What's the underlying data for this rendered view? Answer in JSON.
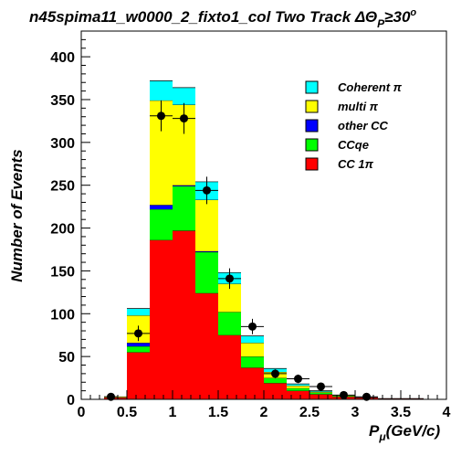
{
  "chart_data": {
    "type": "bar",
    "stacked": true,
    "title": "n45spima11_w0000_2_fixto1_col Two Track ΔΘ",
    "title_subscript": "P",
    "title_suffix": "≥30",
    "title_superscript": "o",
    "xlabel_main": "P",
    "xlabel_sub": "μ",
    "xlabel_unit": "(GeV/c)",
    "ylabel": "Number of Events",
    "xlim": [
      0,
      4
    ],
    "ylim": [
      0,
      430
    ],
    "x_ticks": [
      "0",
      "0.5",
      "1",
      "1.5",
      "2",
      "2.5",
      "3",
      "3.5",
      "4"
    ],
    "y_ticks": [
      "0",
      "50",
      "100",
      "150",
      "200",
      "250",
      "300",
      "350",
      "400"
    ],
    "bin_edges": [
      0.25,
      0.5,
      0.75,
      1.0,
      1.25,
      1.5,
      1.75,
      2.0,
      2.25,
      2.5,
      2.75,
      3.0,
      3.25,
      3.5,
      3.75,
      4.0
    ],
    "series": [
      {
        "name": "CC 1π",
        "color": "#ff0000",
        "values": [
          2,
          55,
          186,
          197,
          124,
          75,
          37,
          19,
          10,
          6,
          3,
          2,
          1,
          1,
          0
        ]
      },
      {
        "name": "CCqe",
        "color": "#00ff00",
        "values": [
          0,
          7,
          36,
          52,
          48,
          27,
          13,
          6,
          3,
          2,
          1,
          0,
          0,
          0,
          0
        ]
      },
      {
        "name": "other CC",
        "color": "#0000ff",
        "values": [
          0,
          4,
          5,
          1,
          1,
          0,
          0,
          0,
          0,
          0,
          0,
          0,
          0,
          0,
          0
        ]
      },
      {
        "name": "multi π",
        "color": "#ffff00",
        "values": [
          1,
          32,
          122,
          94,
          60,
          33,
          16,
          7,
          3,
          1,
          1,
          0,
          0,
          0,
          0
        ]
      },
      {
        "name": "Coherent π",
        "color": "#00ffff",
        "values": [
          0,
          8,
          23,
          20,
          21,
          13,
          8,
          4,
          2,
          1,
          0,
          0,
          0,
          0,
          0
        ]
      }
    ],
    "data_points": {
      "x": [
        0.325,
        0.625,
        0.875,
        1.125,
        1.375,
        1.625,
        1.875,
        2.125,
        2.375,
        2.625,
        2.875,
        3.125
      ],
      "y": [
        3,
        77,
        331,
        328,
        244,
        141,
        85,
        30,
        24,
        15,
        5,
        3
      ],
      "x_err": [
        0.075,
        0.125,
        0.125,
        0.125,
        0.125,
        0.125,
        0.125,
        0.125,
        0.125,
        0.125,
        0.125,
        0.125
      ],
      "y_err": [
        2,
        9,
        18,
        18,
        16,
        12,
        9,
        5,
        5,
        4,
        2,
        2
      ]
    },
    "legend": {
      "position": "top-right",
      "order": [
        "Coherent π",
        "multi π",
        "other CC",
        "CCqe",
        "CC 1π"
      ]
    }
  }
}
